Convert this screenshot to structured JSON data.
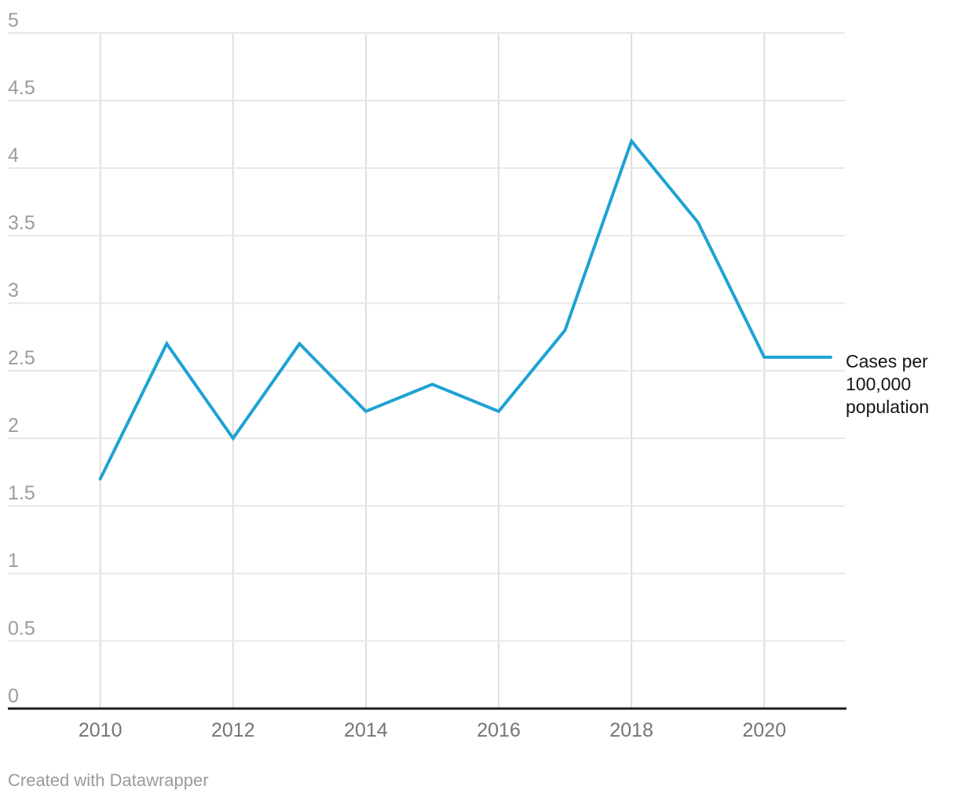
{
  "chart_data": {
    "type": "line",
    "title": "",
    "x": [
      2010,
      2011,
      2012,
      2013,
      2014,
      2015,
      2016,
      2017,
      2018,
      2019,
      2020,
      2021
    ],
    "series": [
      {
        "name": "Cases per 100,000 population",
        "values": [
          1.7,
          2.7,
          2.0,
          2.7,
          2.2,
          2.4,
          2.2,
          2.8,
          4.2,
          3.6,
          2.6,
          2.6
        ]
      }
    ],
    "xlabel": "",
    "ylabel": "",
    "ylim": [
      0,
      5
    ],
    "yticks": [
      0,
      0.5,
      1,
      1.5,
      2,
      2.5,
      3,
      3.5,
      4,
      4.5,
      5
    ],
    "ytick_labels": [
      "0",
      "0.5",
      "1",
      "1.5",
      "2",
      "2.5",
      "3",
      "3.5",
      "4",
      "4.5",
      "5"
    ],
    "xticks": [
      2010,
      2012,
      2014,
      2016,
      2018,
      2020
    ],
    "xtick_labels": [
      "2010",
      "2012",
      "2014",
      "2016",
      "2018",
      "2020"
    ],
    "grid": {
      "horizontal": true,
      "vertical": true
    },
    "legend_position": "right-of-line-end",
    "legend": {
      "label": "Cases per 100,000 population",
      "lines": [
        "Cases per",
        "100,000",
        "population"
      ]
    },
    "colors": {
      "line": "#1EA2D4",
      "axis": "#212121",
      "grid_horizontal": "#e8e8e8",
      "grid_vertical": "#dedede",
      "ytick_text": "#9c9c9c",
      "xtick_text": "#757575",
      "label_text": "#141414",
      "credit_text": "#9a9a9a"
    }
  },
  "footer": {
    "credit": "Created with Datawrapper"
  }
}
